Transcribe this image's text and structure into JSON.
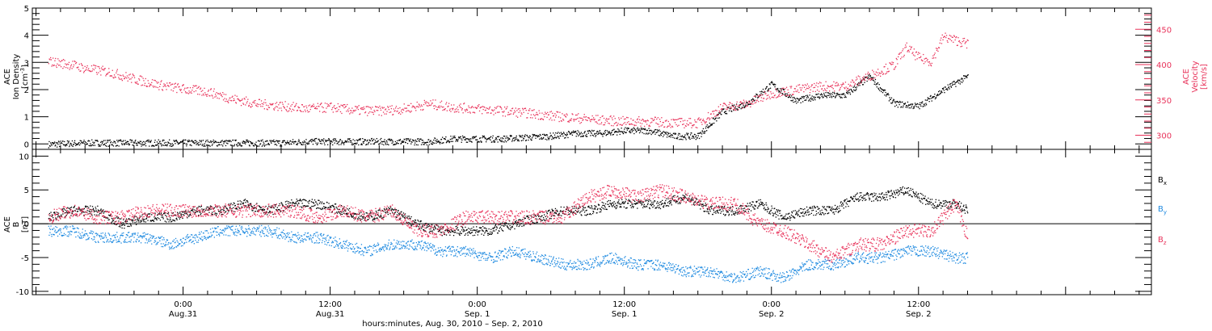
{
  "colors": {
    "black": "#000000",
    "pink": "#e8325a",
    "blue": "#1f8ae0",
    "axis": "#000000"
  },
  "chart_data": [
    {
      "type": "scatter",
      "panel": "ion-density-velocity",
      "ylabel_left": [
        "ACE",
        "Ion Density",
        "[cm",
        "-3",
        "]"
      ],
      "ylabel_right": [
        "ACE",
        "Velocity",
        "[km/s]"
      ],
      "ylim_left": [
        -0.2,
        5.0
      ],
      "ylim_right": [
        280,
        480
      ],
      "yticks_left": [
        "0",
        "1",
        "2",
        "3",
        "4",
        "5"
      ],
      "yticks_right": [
        "300",
        "350",
        "400",
        "450"
      ],
      "series": [
        {
          "axis": "left",
          "color": "#000000",
          "hours": [
            -11,
            -8,
            -4,
            0,
            4,
            8,
            10,
            12,
            14,
            16,
            18,
            20,
            22,
            24,
            26,
            28,
            30,
            32,
            34,
            36,
            38,
            40,
            42,
            44,
            46,
            48,
            50,
            52,
            54,
            56,
            58,
            60,
            62,
            64
          ],
          "values": [
            0.0,
            0.05,
            0.05,
            0.05,
            0.05,
            0.05,
            0.1,
            0.1,
            0.1,
            0.1,
            0.1,
            0.1,
            0.2,
            0.2,
            0.2,
            0.25,
            0.3,
            0.4,
            0.4,
            0.5,
            0.5,
            0.3,
            0.3,
            1.2,
            1.5,
            2.2,
            1.6,
            1.8,
            1.8,
            2.5,
            1.5,
            1.4,
            2.0,
            2.5
          ]
        },
        {
          "axis": "right",
          "color": "#e8325a",
          "hours": [
            -11,
            -9,
            -8,
            -6,
            -4,
            -2,
            0,
            2,
            4,
            6,
            8,
            10,
            12,
            14,
            16,
            18,
            20,
            22,
            24,
            26,
            28,
            30,
            32,
            34,
            36,
            38,
            40,
            42,
            44,
            46,
            48,
            50,
            52,
            54,
            56,
            58,
            59,
            60,
            61,
            62,
            63,
            64
          ],
          "values": [
            405,
            400,
            395,
            390,
            380,
            372,
            366,
            362,
            352,
            345,
            342,
            338,
            340,
            336,
            335,
            338,
            345,
            340,
            338,
            335,
            332,
            328,
            325,
            322,
            320,
            320,
            318,
            318,
            340,
            345,
            360,
            365,
            370,
            370,
            385,
            400,
            425,
            410,
            405,
            440,
            435,
            430
          ]
        }
      ]
    },
    {
      "type": "scatter",
      "panel": "magnetic-field",
      "ylabel_left": [
        "ACE",
        "B",
        "[nT]"
      ],
      "ylim": [
        -10.5,
        11
      ],
      "yticks": [
        "-10",
        "-5",
        "0",
        "5",
        "10"
      ],
      "legend": [
        "B",
        "B",
        "B"
      ],
      "legend_subscripts": [
        "x",
        "y",
        "z"
      ],
      "series": [
        {
          "name": "Bx",
          "color": "#000000",
          "hours": [
            -11,
            -9,
            -7,
            -5,
            -3,
            -1,
            1,
            3,
            5,
            7,
            9,
            11,
            13,
            15,
            17,
            19,
            21,
            23,
            25,
            27,
            29,
            31,
            33,
            35,
            37,
            39,
            41,
            43,
            45,
            47,
            49,
            51,
            53,
            55,
            57,
            59,
            61,
            63,
            64
          ],
          "values": [
            1,
            2,
            2,
            0,
            1,
            1,
            2,
            2,
            3,
            2,
            3,
            3,
            2,
            1,
            2,
            0,
            -1,
            -1,
            -1,
            0,
            1,
            2,
            2,
            3,
            3,
            3,
            4,
            2,
            2,
            3,
            1,
            2,
            2,
            4,
            4,
            5,
            3,
            3,
            2
          ]
        },
        {
          "name": "By",
          "color": "#1f8ae0",
          "hours": [
            -11,
            -9,
            -7,
            -5,
            -3,
            -1,
            1,
            3,
            5,
            7,
            9,
            11,
            13,
            15,
            17,
            19,
            21,
            23,
            25,
            27,
            29,
            31,
            33,
            35,
            37,
            39,
            41,
            43,
            45,
            47,
            49,
            51,
            53,
            55,
            57,
            59,
            61,
            63,
            64
          ],
          "values": [
            -1,
            -1,
            -2,
            -2,
            -2,
            -3,
            -2,
            -1,
            -1,
            -1,
            -2,
            -2,
            -3,
            -4,
            -3,
            -3,
            -4,
            -4,
            -5,
            -4,
            -5,
            -6,
            -6,
            -5,
            -6,
            -6,
            -7,
            -7,
            -8,
            -7,
            -8,
            -6,
            -6,
            -5,
            -5,
            -4,
            -4,
            -5,
            -5
          ]
        },
        {
          "name": "Bz",
          "color": "#e8325a",
          "hours": [
            -11,
            -9,
            -7,
            -5,
            -3,
            -1,
            1,
            3,
            5,
            7,
            9,
            11,
            13,
            15,
            17,
            19,
            21,
            23,
            25,
            27,
            29,
            31,
            33,
            35,
            37,
            39,
            41,
            43,
            45,
            47,
            49,
            51,
            53,
            55,
            57,
            59,
            61,
            63,
            64
          ],
          "values": [
            1,
            2,
            1,
            1,
            2,
            2,
            2,
            2,
            2,
            2,
            2,
            1,
            2,
            1,
            2,
            -1,
            -1,
            1,
            1,
            1,
            1,
            1,
            4,
            5,
            4,
            5,
            4,
            3,
            3,
            0,
            -1,
            -3,
            -5,
            -3,
            -3,
            -1,
            -1,
            3,
            -2
          ]
        }
      ]
    }
  ],
  "xaxis": {
    "xlabel": "hours:minutes, Aug. 30, 2010 – Sep.  2, 2010",
    "xlim_hours": [
      -12.3,
      79
    ],
    "ticks": [
      {
        "hours": 0,
        "time": "0:00",
        "date": "Aug.31"
      },
      {
        "hours": 12,
        "time": "12:00",
        "date": "Aug.31"
      },
      {
        "hours": 24,
        "time": "0:00",
        "date": "Sep. 1"
      },
      {
        "hours": 36,
        "time": "12:00",
        "date": "Sep. 1"
      },
      {
        "hours": 48,
        "time": "0:00",
        "date": "Sep. 2"
      },
      {
        "hours": 60,
        "time": "12:00",
        "date": "Sep. 2"
      }
    ]
  }
}
